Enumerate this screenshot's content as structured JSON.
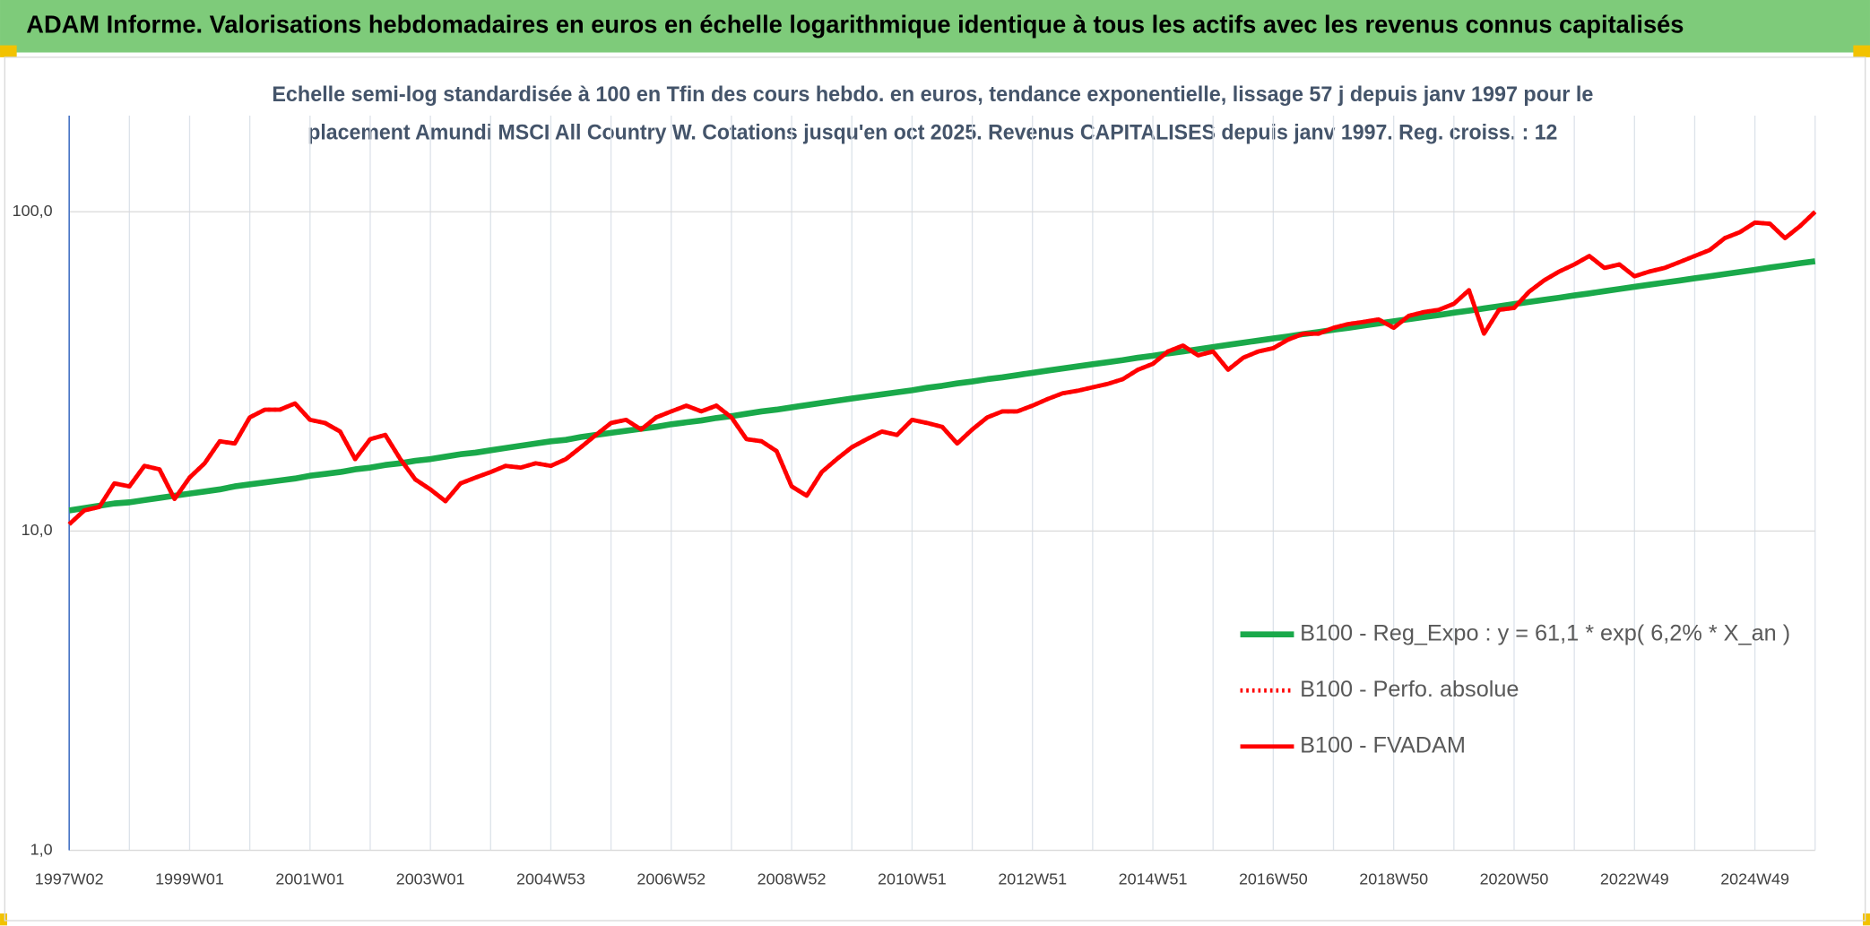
{
  "chart_data": {
    "type": "line",
    "title": "ADAM Informe. Valorisations hebdomadaires en euros en échelle logarithmique identique à tous les actifs avec les revenus connus capitalisés",
    "subtitle": [
      "Echelle semi-log standardisée à 100 en Tfin des cours hebdo. en euros, tendance exponentielle, lissage 57 j depuis janv 1997 pour le",
      "placement Amundi MSCI All Country W. Cotations jusqu'en oct 2025. Revenus CAPITALISES depuis janv 1997. Reg. croiss. : 12"
    ],
    "categories": [
      "1997W02",
      null,
      null,
      null,
      null,
      null,
      null,
      null,
      "1999W01",
      null,
      null,
      null,
      null,
      null,
      null,
      null,
      "2001W01",
      null,
      null,
      null,
      null,
      null,
      null,
      null,
      "2003W01",
      null,
      null,
      null,
      null,
      null,
      null,
      null,
      "2004W53",
      null,
      null,
      null,
      null,
      null,
      null,
      null,
      "2006W52",
      null,
      null,
      null,
      null,
      null,
      null,
      null,
      "2008W52",
      null,
      null,
      null,
      null,
      null,
      null,
      null,
      "2010W51",
      null,
      null,
      null,
      null,
      null,
      null,
      null,
      "2012W51",
      null,
      null,
      null,
      null,
      null,
      null,
      null,
      "2014W51",
      null,
      null,
      null,
      null,
      null,
      null,
      null,
      "2016W50",
      null,
      null,
      null,
      null,
      null,
      null,
      null,
      "2018W50",
      null,
      null,
      null,
      null,
      null,
      null,
      null,
      "2020W50",
      null,
      null,
      null,
      null,
      null,
      null,
      null,
      "2022W49",
      null,
      null,
      null,
      null,
      null,
      null,
      null,
      "2024W49",
      null,
      null,
      null,
      null
    ],
    "log_scale": true,
    "ylim": [
      1,
      200
    ],
    "yticks": [
      {
        "value": 1,
        "label": "1,0"
      },
      {
        "value": 10,
        "label": "10,0"
      },
      {
        "value": 100,
        "label": "100,0"
      }
    ],
    "grid": true,
    "legend": "right",
    "series": [
      {
        "name": "B100 - Reg_Expo : y = 61,1 * exp( 6,2% *  X_an )",
        "color": "#1aa94a",
        "style": "solid",
        "values": [
          11.6,
          11.8,
          12.0,
          12.2,
          12.3,
          12.5,
          12.7,
          12.9,
          13.1,
          13.3,
          13.5,
          13.8,
          14.0,
          14.2,
          14.4,
          14.6,
          14.9,
          15.1,
          15.3,
          15.6,
          15.8,
          16.1,
          16.3,
          16.6,
          16.8,
          17.1,
          17.4,
          17.6,
          17.9,
          18.2,
          18.5,
          18.8,
          19.1,
          19.3,
          19.7,
          20.0,
          20.3,
          20.6,
          20.9,
          21.2,
          21.6,
          21.9,
          22.2,
          22.6,
          22.9,
          23.3,
          23.7,
          24.0,
          24.4,
          24.8,
          25.2,
          25.6,
          26.0,
          26.4,
          26.8,
          27.2,
          27.6,
          28.1,
          28.5,
          29.0,
          29.4,
          29.9,
          30.3,
          30.8,
          31.3,
          31.8,
          32.3,
          32.8,
          33.3,
          33.8,
          34.3,
          34.9,
          35.4,
          36.0,
          36.5,
          37.1,
          37.7,
          38.3,
          38.9,
          39.5,
          40.1,
          40.7,
          41.4,
          42.0,
          42.7,
          43.3,
          44.0,
          44.7,
          45.4,
          46.1,
          46.8,
          47.5,
          48.3,
          49.0,
          49.8,
          50.6,
          51.4,
          52.2,
          53.0,
          53.8,
          54.7,
          55.5,
          56.4,
          57.3,
          58.2,
          59.1,
          60.0,
          60.9,
          61.9,
          62.8,
          63.8,
          64.8,
          65.8,
          66.9,
          67.9,
          69.0,
          70.0
        ]
      },
      {
        "name": "B100 - Perfo. absolue",
        "color": "#ff0000",
        "style": "dotted",
        "values": [
          10.5,
          11.6,
          11.9,
          14.1,
          13.8,
          16.0,
          15.6,
          12.6,
          14.7,
          16.3,
          19.1,
          18.8,
          22.7,
          24.0,
          24.0,
          25.1,
          22.3,
          21.8,
          20.5,
          16.8,
          19.4,
          20.0,
          16.8,
          14.5,
          13.5,
          12.4,
          14.1,
          14.7,
          15.3,
          16.0,
          15.8,
          16.3,
          16.0,
          16.8,
          18.3,
          20.0,
          21.8,
          22.3,
          20.8,
          22.7,
          23.7,
          24.7,
          23.7,
          24.7,
          22.7,
          19.4,
          19.1,
          17.8,
          13.8,
          12.9,
          15.3,
          16.8,
          18.3,
          19.4,
          20.5,
          20.0,
          22.3,
          21.8,
          21.2,
          18.8,
          20.8,
          22.7,
          23.7,
          23.7,
          24.7,
          25.9,
          27.0,
          27.5,
          28.2,
          28.9,
          29.9,
          32.0,
          33.4,
          36.5,
          38.1,
          35.5,
          36.5,
          32.0,
          34.9,
          36.5,
          37.4,
          39.8,
          41.5,
          41.5,
          43.3,
          44.5,
          45.2,
          46.0,
          43.3,
          47.2,
          48.5,
          49.3,
          51.5,
          56.8,
          41.5,
          49.3,
          50.0,
          56.2,
          61.0,
          65.0,
          68.4,
          72.7,
          66.7,
          68.4,
          62.8,
          65.0,
          66.7,
          69.6,
          72.7,
          75.9,
          82.7,
          86.3,
          92.5,
          91.7,
          82.7,
          90.2,
          100
        ]
      },
      {
        "name": "B100 - FVADAM",
        "color": "#ff0000",
        "style": "solid",
        "values": [
          10.5,
          11.6,
          11.9,
          14.1,
          13.8,
          16.0,
          15.6,
          12.6,
          14.7,
          16.3,
          19.1,
          18.8,
          22.7,
          24.0,
          24.0,
          25.1,
          22.3,
          21.8,
          20.5,
          16.8,
          19.4,
          20.0,
          16.8,
          14.5,
          13.5,
          12.4,
          14.1,
          14.7,
          15.3,
          16.0,
          15.8,
          16.3,
          16.0,
          16.8,
          18.3,
          20.0,
          21.8,
          22.3,
          20.8,
          22.7,
          23.7,
          24.7,
          23.7,
          24.7,
          22.7,
          19.4,
          19.1,
          17.8,
          13.8,
          12.9,
          15.3,
          16.8,
          18.3,
          19.4,
          20.5,
          20.0,
          22.3,
          21.8,
          21.2,
          18.8,
          20.8,
          22.7,
          23.7,
          23.7,
          24.7,
          25.9,
          27.0,
          27.5,
          28.2,
          28.9,
          29.9,
          32.0,
          33.4,
          36.5,
          38.1,
          35.5,
          36.5,
          32.0,
          34.9,
          36.5,
          37.4,
          39.8,
          41.5,
          41.5,
          43.3,
          44.5,
          45.2,
          46.0,
          43.3,
          47.2,
          48.5,
          49.3,
          51.5,
          56.8,
          41.5,
          49.3,
          50.0,
          56.2,
          61.0,
          65.0,
          68.4,
          72.7,
          66.7,
          68.4,
          62.8,
          65.0,
          66.7,
          69.6,
          72.7,
          75.9,
          82.7,
          86.3,
          92.5,
          91.7,
          82.7,
          90.2,
          100
        ]
      }
    ]
  }
}
